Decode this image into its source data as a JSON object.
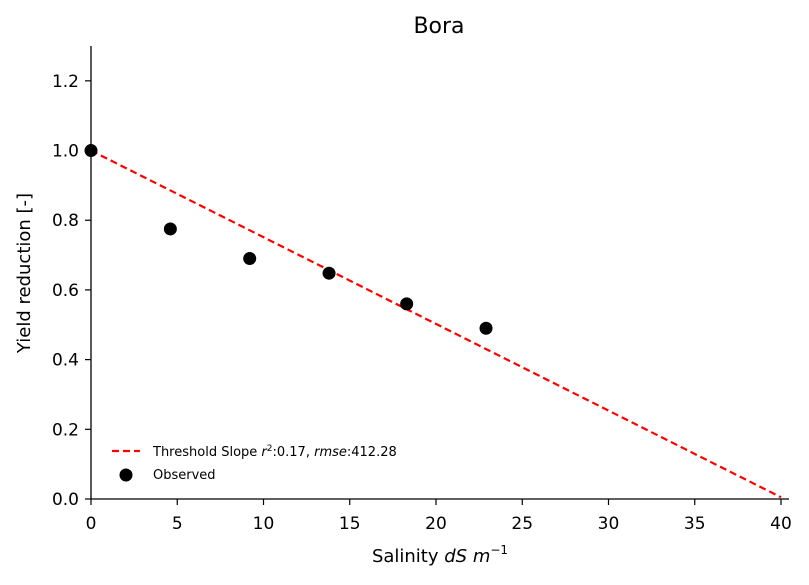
{
  "chart_data": {
    "type": "scatter",
    "title": "Bora",
    "xlabel_prefix": "Salinity ",
    "xlabel_unit_main": "dS m",
    "xlabel_unit_exp": "−1",
    "ylabel": "Yield reduction [-]",
    "xlim": [
      0,
      40
    ],
    "ylim": [
      0,
      1.3
    ],
    "xticks": [
      0,
      5,
      10,
      15,
      20,
      25,
      30,
      35,
      40
    ],
    "yticks": [
      0.0,
      0.2,
      0.4,
      0.6,
      0.8,
      1.0,
      1.2
    ],
    "xtick_labels": [
      "0",
      "5",
      "10",
      "15",
      "20",
      "25",
      "30",
      "35",
      "40"
    ],
    "ytick_labels": [
      "0.0",
      "0.2",
      "0.4",
      "0.6",
      "0.8",
      "1.0",
      "1.2"
    ],
    "grid": false,
    "legend_position": "lower-left",
    "series": [
      {
        "name": "Threshold Slope",
        "kind": "line",
        "style": "dashed",
        "color": "#ff0000",
        "x": [
          0,
          40
        ],
        "y": [
          1.0,
          0.005
        ]
      },
      {
        "name": "Observed",
        "kind": "scatter",
        "color": "#000000",
        "x": [
          0.0,
          4.6,
          9.2,
          13.8,
          18.3,
          22.9
        ],
        "y": [
          1.0,
          0.775,
          0.69,
          0.648,
          0.56,
          0.49
        ]
      }
    ],
    "legend": {
      "line_label_prefix": "Threshold Slope ",
      "line_label_r_symbol": "r",
      "line_label_r_sup": "2",
      "line_label_r_value": ":0.17, ",
      "line_label_rmse_symbol": "rmse",
      "line_label_rmse_value": ":412.28",
      "scatter_label": "Observed"
    }
  }
}
